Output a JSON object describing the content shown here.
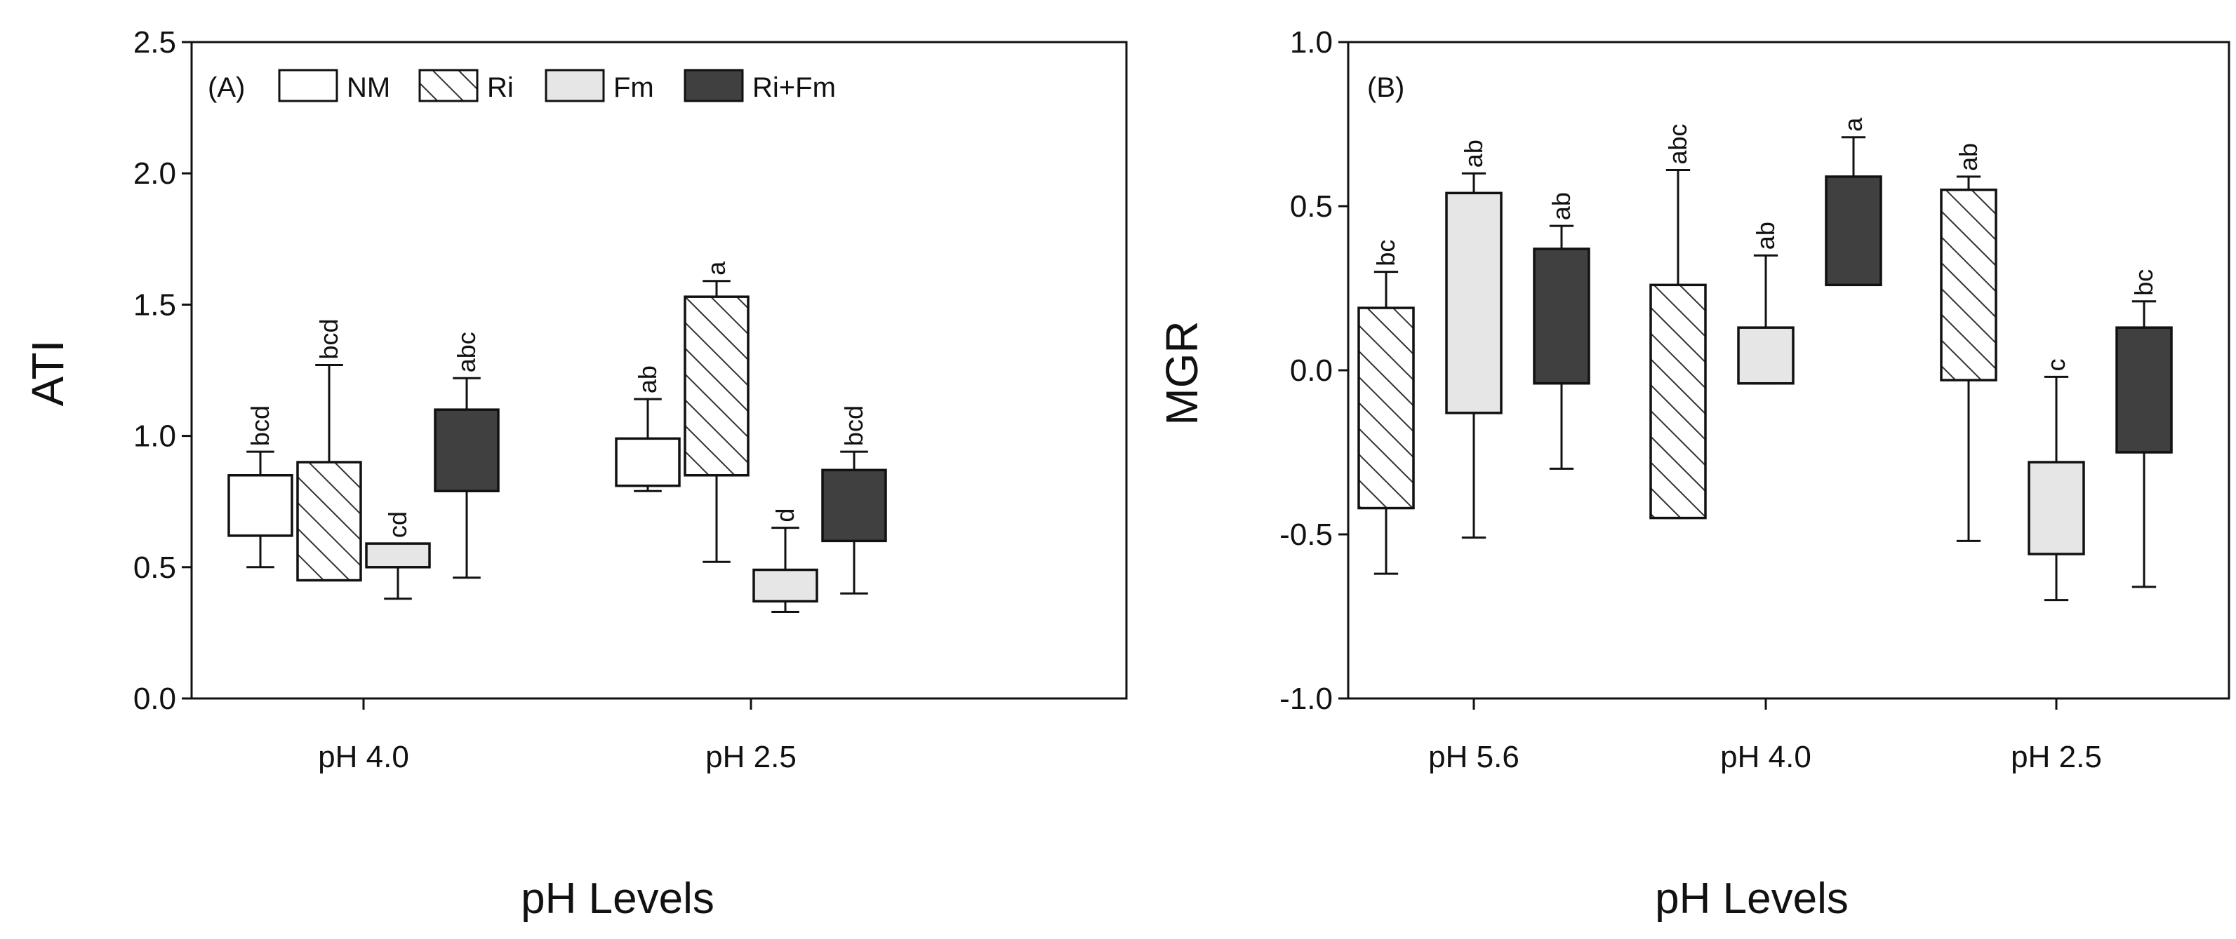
{
  "chart_data": [
    {
      "type": "box",
      "panel_label": "(A)",
      "title": "",
      "xlabel": "pH Levels",
      "ylabel": "ATI",
      "ylim": [
        0,
        2.5
      ],
      "yticks": [
        "0.0",
        "0.5",
        "1.0",
        "1.5",
        "2.0",
        "2.5"
      ],
      "categories": [
        "pH 4.0",
        "pH 2.5"
      ],
      "legend": {
        "position": "top",
        "items": [
          {
            "name": "NM",
            "fill": "#ffffff",
            "hatch": false
          },
          {
            "name": "Ri",
            "fill": "#ffffff",
            "hatch": true
          },
          {
            "name": "Fm",
            "fill": "#e6e6e6",
            "hatch": false
          },
          {
            "name": "Ri+Fm",
            "fill": "#404040",
            "hatch": false
          }
        ]
      },
      "groups": [
        {
          "category": "pH 4.0",
          "boxes": [
            {
              "series": "NM",
              "q1": 0.62,
              "q3": 0.85,
              "whisker_low": 0.5,
              "whisker_high": 0.94,
              "letter": "bcd"
            },
            {
              "series": "Ri",
              "q1": 0.45,
              "q3": 0.9,
              "whisker_low": 0.45,
              "whisker_high": 1.27,
              "letter": "bcd"
            },
            {
              "series": "Fm",
              "q1": 0.5,
              "q3": 0.59,
              "whisker_low": 0.38,
              "whisker_high": 0.59,
              "letter": "cd"
            },
            {
              "series": "Ri+Fm",
              "q1": 0.79,
              "q3": 1.1,
              "whisker_low": 0.46,
              "whisker_high": 1.22,
              "letter": "abc"
            }
          ]
        },
        {
          "category": "pH 2.5",
          "boxes": [
            {
              "series": "NM",
              "q1": 0.81,
              "q3": 0.99,
              "whisker_low": 0.79,
              "whisker_high": 1.14,
              "letter": "ab"
            },
            {
              "series": "Ri",
              "q1": 0.85,
              "q3": 1.53,
              "whisker_low": 0.52,
              "whisker_high": 1.59,
              "letter": "a"
            },
            {
              "series": "Fm",
              "q1": 0.37,
              "q3": 0.49,
              "whisker_low": 0.33,
              "whisker_high": 0.65,
              "letter": "d"
            },
            {
              "series": "Ri+Fm",
              "q1": 0.6,
              "q3": 0.87,
              "whisker_low": 0.4,
              "whisker_high": 0.94,
              "letter": "bcd"
            }
          ]
        }
      ]
    },
    {
      "type": "box",
      "panel_label": "(B)",
      "title": "",
      "xlabel": "pH Levels",
      "ylabel": "MGR",
      "ylim": [
        -1,
        1
      ],
      "yticks": [
        "-1.0",
        "-0.5",
        "0.0",
        "0.5",
        "1.0"
      ],
      "categories": [
        "pH 5.6",
        "pH 4.0",
        "pH 2.5"
      ],
      "groups": [
        {
          "category": "pH 5.6",
          "boxes": [
            {
              "series": "Ri",
              "q1": -0.42,
              "q3": 0.19,
              "whisker_low": -0.62,
              "whisker_high": 0.3,
              "letter": "bc"
            },
            {
              "series": "Fm",
              "q1": -0.13,
              "q3": 0.54,
              "whisker_low": -0.51,
              "whisker_high": 0.6,
              "letter": "ab"
            },
            {
              "series": "Ri+Fm",
              "q1": -0.04,
              "q3": 0.37,
              "whisker_low": -0.3,
              "whisker_high": 0.44,
              "letter": "ab"
            }
          ]
        },
        {
          "category": "pH 4.0",
          "boxes": [
            {
              "series": "Ri",
              "q1": -0.45,
              "q3": 0.26,
              "whisker_low": -0.45,
              "whisker_high": 0.61,
              "letter": "abc"
            },
            {
              "series": "Fm",
              "q1": -0.04,
              "q3": 0.13,
              "whisker_low": -0.04,
              "whisker_high": 0.35,
              "letter": "ab"
            },
            {
              "series": "Ri+Fm",
              "q1": 0.26,
              "q3": 0.59,
              "whisker_low": 0.26,
              "whisker_high": 0.71,
              "letter": "a"
            }
          ]
        },
        {
          "category": "pH 2.5",
          "boxes": [
            {
              "series": "Ri",
              "q1": -0.03,
              "q3": 0.55,
              "whisker_low": -0.52,
              "whisker_high": 0.59,
              "letter": "ab"
            },
            {
              "series": "Fm",
              "q1": -0.56,
              "q3": -0.28,
              "whisker_low": -0.7,
              "whisker_high": -0.02,
              "letter": "c"
            },
            {
              "series": "Ri+Fm",
              "q1": -0.25,
              "q3": 0.13,
              "whisker_low": -0.66,
              "whisker_high": 0.21,
              "letter": "bc"
            }
          ]
        }
      ]
    }
  ]
}
